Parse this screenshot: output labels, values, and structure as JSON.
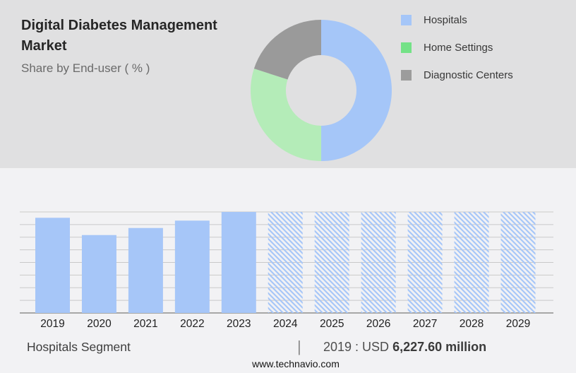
{
  "header": {
    "title": "Digital Diabetes Management Market",
    "subtitle": "Share by End-user ( % )"
  },
  "chart_data": [
    {
      "type": "pie",
      "donut": true,
      "title": "Share by End-user ( % )",
      "labels": [
        "Hospitals",
        "Home Settings",
        "Diagnostic Centers"
      ],
      "values_pct": [
        50,
        30,
        20
      ],
      "slice_colors": [
        "#A5C6F8",
        "#B4ECB8",
        "#9A9A9A"
      ],
      "legend_swatch_colors": [
        "#A5C6F8",
        "#74E287",
        "#9C9C9C"
      ],
      "legend_position": "right"
    },
    {
      "type": "bar",
      "categories": [
        "2019",
        "2020",
        "2021",
        "2022",
        "2023",
        "2024",
        "2025",
        "2026",
        "2027",
        "2028",
        "2029"
      ],
      "values_pct_of_max": [
        94.2,
        77.1,
        84.1,
        91.4,
        100,
        100,
        100,
        100,
        100,
        100,
        100
      ],
      "forecast_hatched_categories": [
        "2024",
        "2025",
        "2026",
        "2027",
        "2028",
        "2029"
      ],
      "known_point": {
        "year": "2019",
        "value_usd_million": 6227.6
      },
      "bar_color": "#A6C6F8",
      "hatch_color": "#A6C6F8",
      "grid_color": "#C9C9C9",
      "axis_color": "#A7A7A7",
      "grid_on": true,
      "xlabel": "",
      "ylabel": ""
    }
  ],
  "footer": {
    "segment_label": "Hospitals Segment",
    "separator": "|",
    "stat_prefix": "2019 : USD ",
    "stat_value": "6,227.60 million",
    "website": "www.technavio.com"
  }
}
